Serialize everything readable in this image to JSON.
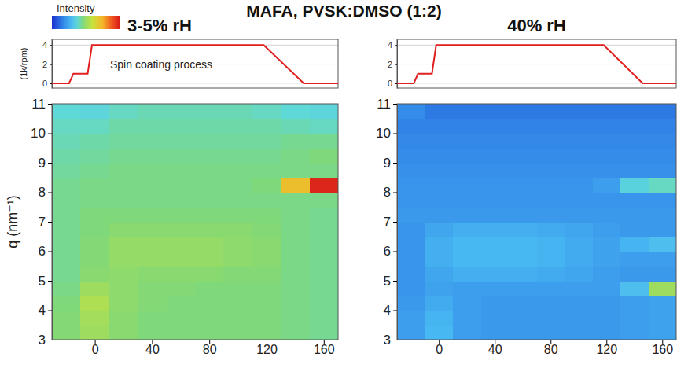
{
  "chart_data": {
    "type": "heatmap",
    "title": "MAFA, PVSK:DMSO (1:2)",
    "colorbar": {
      "title": "Intensity",
      "range": [
        0,
        1
      ]
    },
    "panels": [
      {
        "title": "3-5% rH",
        "profile": {
          "type": "line",
          "ylabel": "(1k/rpm)",
          "annotation": "Spin coating process",
          "color": "#e02020",
          "x": [
            -30,
            -18,
            -15,
            -5,
            -2,
            118,
            146,
            170
          ],
          "values": [
            0,
            0,
            1,
            1,
            4,
            4,
            0,
            0
          ],
          "xlim": [
            -30,
            170
          ],
          "ylim": [
            -0.5,
            4.6
          ],
          "yticks": [
            0,
            2,
            4
          ],
          "grid": true,
          "tick_labels": "y"
        },
        "heatmap": {
          "ylabel": "q (nm⁻¹)",
          "x_edges": [
            -30,
            -10,
            10,
            30,
            50,
            70,
            90,
            110,
            130,
            150,
            170
          ],
          "y_edges": [
            3,
            3.5,
            4,
            4.5,
            5,
            5.5,
            6,
            6.5,
            7,
            7.5,
            8,
            8.5,
            9,
            9.5,
            10,
            10.5,
            11
          ],
          "z": [
            [
              0.47,
              0.52,
              0.48,
              0.46,
              0.46,
              0.46,
              0.46,
              0.46,
              0.45,
              0.44
            ],
            [
              0.47,
              0.53,
              0.48,
              0.46,
              0.46,
              0.46,
              0.46,
              0.46,
              0.45,
              0.44
            ],
            [
              0.46,
              0.55,
              0.49,
              0.47,
              0.46,
              0.46,
              0.46,
              0.46,
              0.45,
              0.44
            ],
            [
              0.45,
              0.52,
              0.49,
              0.47,
              0.47,
              0.46,
              0.46,
              0.46,
              0.45,
              0.44
            ],
            [
              0.44,
              0.48,
              0.49,
              0.48,
              0.48,
              0.48,
              0.47,
              0.47,
              0.45,
              0.44
            ],
            [
              0.44,
              0.47,
              0.5,
              0.5,
              0.5,
              0.5,
              0.49,
              0.48,
              0.45,
              0.44
            ],
            [
              0.44,
              0.47,
              0.5,
              0.5,
              0.5,
              0.5,
              0.49,
              0.48,
              0.45,
              0.44
            ],
            [
              0.44,
              0.46,
              0.48,
              0.48,
              0.48,
              0.48,
              0.48,
              0.47,
              0.45,
              0.44
            ],
            [
              0.44,
              0.46,
              0.46,
              0.46,
              0.46,
              0.46,
              0.46,
              0.46,
              0.45,
              0.44
            ],
            [
              0.44,
              0.45,
              0.45,
              0.45,
              0.45,
              0.45,
              0.45,
              0.45,
              0.45,
              0.45
            ],
            [
              0.44,
              0.45,
              0.45,
              0.45,
              0.45,
              0.45,
              0.45,
              0.46,
              0.72,
              0.98
            ],
            [
              0.43,
              0.44,
              0.45,
              0.45,
              0.45,
              0.45,
              0.45,
              0.45,
              0.45,
              0.45
            ],
            [
              0.42,
              0.43,
              0.44,
              0.44,
              0.44,
              0.44,
              0.44,
              0.44,
              0.45,
              0.46
            ],
            [
              0.41,
              0.42,
              0.43,
              0.43,
              0.43,
              0.43,
              0.43,
              0.43,
              0.44,
              0.44
            ],
            [
              0.4,
              0.4,
              0.42,
              0.42,
              0.42,
              0.42,
              0.42,
              0.42,
              0.41,
              0.4
            ],
            [
              0.38,
              0.37,
              0.4,
              0.41,
              0.41,
              0.41,
              0.41,
              0.4,
              0.38,
              0.37
            ]
          ],
          "xlim": [
            -30,
            170
          ],
          "xticks": [
            0,
            40,
            80,
            120,
            160
          ],
          "ylim": [
            3,
            11
          ],
          "yticks": [
            3,
            4,
            5,
            6,
            7,
            8,
            9,
            10,
            11
          ]
        }
      },
      {
        "title": "40% rH",
        "profile": {
          "type": "line",
          "color": "#e02020",
          "x": [
            -30,
            -18,
            -15,
            -5,
            -2,
            118,
            146,
            170
          ],
          "values": [
            0,
            0,
            1,
            1,
            4,
            4,
            0,
            0
          ],
          "xlim": [
            -30,
            170
          ],
          "ylim": [
            -0.5,
            4.6
          ],
          "yticks": [
            0,
            2,
            4
          ],
          "grid": true,
          "tick_labels": "y"
        },
        "heatmap": {
          "x_edges": [
            -30,
            -10,
            10,
            30,
            50,
            70,
            90,
            110,
            130,
            150,
            170
          ],
          "y_edges": [
            3,
            3.5,
            4,
            4.5,
            5,
            5.5,
            6,
            6.5,
            7,
            7.5,
            8,
            8.5,
            9,
            9.5,
            10,
            10.5,
            11
          ],
          "z": [
            [
              0.22,
              0.28,
              0.22,
              0.21,
              0.21,
              0.21,
              0.21,
              0.21,
              0.22,
              0.23
            ],
            [
              0.22,
              0.27,
              0.22,
              0.21,
              0.21,
              0.21,
              0.21,
              0.21,
              0.22,
              0.23
            ],
            [
              0.21,
              0.25,
              0.22,
              0.21,
              0.21,
              0.21,
              0.21,
              0.21,
              0.22,
              0.23
            ],
            [
              0.2,
              0.23,
              0.22,
              0.22,
              0.22,
              0.22,
              0.22,
              0.22,
              0.3,
              0.52
            ],
            [
              0.2,
              0.24,
              0.26,
              0.26,
              0.26,
              0.25,
              0.24,
              0.22,
              0.21,
              0.21
            ],
            [
              0.2,
              0.26,
              0.28,
              0.28,
              0.28,
              0.27,
              0.25,
              0.23,
              0.22,
              0.22
            ],
            [
              0.2,
              0.26,
              0.28,
              0.28,
              0.28,
              0.27,
              0.25,
              0.23,
              0.27,
              0.3
            ],
            [
              0.2,
              0.24,
              0.26,
              0.26,
              0.26,
              0.25,
              0.24,
              0.22,
              0.21,
              0.21
            ],
            [
              0.21,
              0.21,
              0.21,
              0.21,
              0.21,
              0.21,
              0.21,
              0.21,
              0.21,
              0.21
            ],
            [
              0.2,
              0.2,
              0.2,
              0.2,
              0.2,
              0.2,
              0.2,
              0.2,
              0.2,
              0.2
            ],
            [
              0.2,
              0.2,
              0.2,
              0.2,
              0.2,
              0.2,
              0.2,
              0.22,
              0.36,
              0.4
            ],
            [
              0.19,
              0.19,
              0.19,
              0.19,
              0.19,
              0.19,
              0.19,
              0.19,
              0.19,
              0.19
            ],
            [
              0.18,
              0.18,
              0.18,
              0.18,
              0.18,
              0.18,
              0.18,
              0.18,
              0.18,
              0.18
            ],
            [
              0.17,
              0.17,
              0.17,
              0.17,
              0.17,
              0.17,
              0.17,
              0.17,
              0.17,
              0.17
            ],
            [
              0.16,
              0.16,
              0.16,
              0.16,
              0.16,
              0.16,
              0.16,
              0.16,
              0.16,
              0.16
            ],
            [
              0.18,
              0.14,
              0.14,
              0.14,
              0.14,
              0.14,
              0.14,
              0.14,
              0.14,
              0.14
            ]
          ],
          "xlim": [
            -30,
            170
          ],
          "xticks": [
            0,
            40,
            80,
            120,
            160
          ],
          "ylim": [
            3,
            11
          ],
          "yticks": [
            3,
            4,
            5,
            6,
            7,
            8,
            9,
            10,
            11
          ]
        }
      }
    ]
  }
}
